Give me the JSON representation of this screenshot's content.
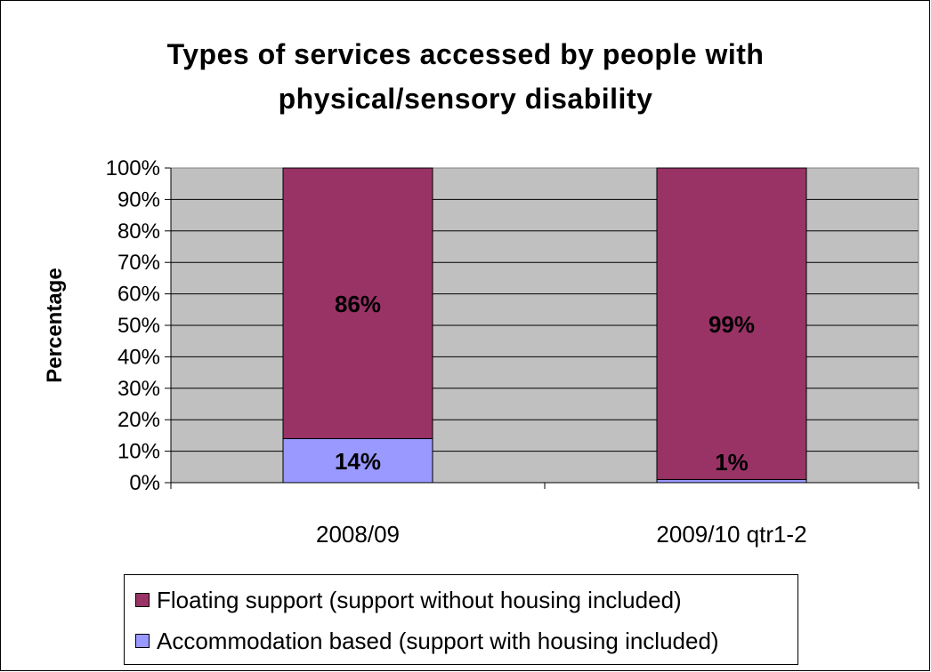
{
  "chart_data": {
    "type": "bar",
    "stacked": true,
    "title_lines": [
      "Types of services accessed by people with",
      "physical/sensory disability"
    ],
    "ylabel": "Percentage",
    "xlabel": "",
    "categories": [
      "2008/09",
      "2009/10 qtr1-2"
    ],
    "ylim": [
      0,
      100
    ],
    "yticks": [
      "0%",
      "10%",
      "20%",
      "30%",
      "40%",
      "50%",
      "60%",
      "70%",
      "80%",
      "90%",
      "100%"
    ],
    "grid": true,
    "legend_position": "bottom",
    "series": [
      {
        "name": "Accommodation based (support with housing included)",
        "values": [
          14,
          1
        ],
        "labels": [
          "14%",
          "1%"
        ],
        "color": "#9999FF"
      },
      {
        "name": "Floating support (support without housing included)",
        "values": [
          86,
          99
        ],
        "labels": [
          "86%",
          "99%"
        ],
        "color": "#993366"
      }
    ],
    "plot_background": "#C0C0C0"
  }
}
